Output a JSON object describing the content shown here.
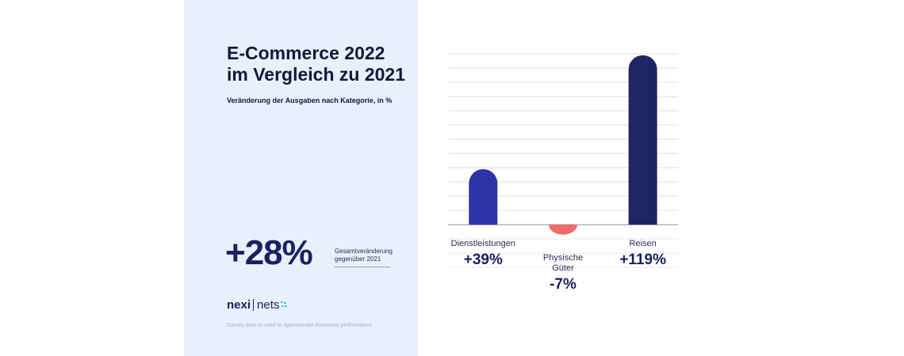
{
  "panel": {
    "title_line1": "E-Commerce 2022",
    "title_line2": "im Vergleich zu 2021",
    "subtitle": "Veränderung der Ausgaben nach Kategorie, in %",
    "total_value": "+28%",
    "total_label_line1": "Gesamtveränderung",
    "total_label_line2": "gegenüber 2021",
    "footnote": "Survey data is used to approximate economic performance.",
    "logo_left": "nexi",
    "logo_right": "nets",
    "logo_icon": "dots-icon"
  },
  "colors": {
    "panel_bg": "#e8f0fc",
    "dienstleistungen": "#2f33a8",
    "physische_gueter": "#f26b6b",
    "reisen": "#1f2563",
    "text_dark": "#1a2160",
    "accent_teal": "#3bb9b1"
  },
  "chart_data": {
    "type": "bar",
    "categories": [
      "Dienstleistungen",
      "Physische Güter",
      "Reisen"
    ],
    "values": [
      39,
      -7,
      119
    ],
    "value_labels": [
      "+39%",
      "-7%",
      "+119%"
    ],
    "category_label_lines": [
      [
        "Dienstleistungen"
      ],
      [
        "Physische",
        "Güter"
      ],
      [
        "Reisen"
      ]
    ],
    "bar_colors": [
      "#2f33a8",
      "#f26b6b",
      "#1f2563"
    ],
    "ylim": [
      -10,
      120
    ],
    "grid": true,
    "unit": "%"
  }
}
